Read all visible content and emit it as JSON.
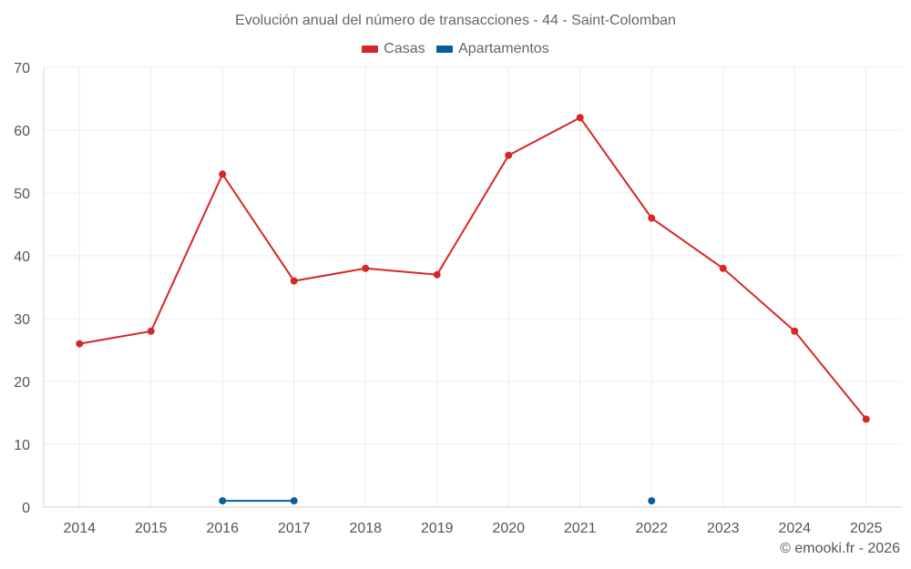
{
  "chart_data": {
    "type": "line",
    "title": "Evolución anual del número de transacciones - 44 - Saint-Colomban",
    "categories": [
      "2014",
      "2015",
      "2016",
      "2017",
      "2018",
      "2019",
      "2020",
      "2021",
      "2022",
      "2023",
      "2024",
      "2025"
    ],
    "series": [
      {
        "name": "Casas",
        "color": "#d62728",
        "values": [
          26,
          28,
          53,
          36,
          38,
          37,
          56,
          62,
          46,
          38,
          28,
          14
        ]
      },
      {
        "name": "Apartamentos",
        "color": "#0b5f98",
        "values": [
          null,
          null,
          1,
          1,
          null,
          null,
          null,
          null,
          1,
          null,
          null,
          null
        ]
      }
    ],
    "ylim": [
      0,
      70
    ],
    "yticks": [
      0,
      10,
      20,
      30,
      40,
      50,
      60,
      70
    ],
    "xlabel": "",
    "ylabel": "",
    "grid": true,
    "legend": "top-center"
  },
  "credit": "© emooki.fr - 2026"
}
